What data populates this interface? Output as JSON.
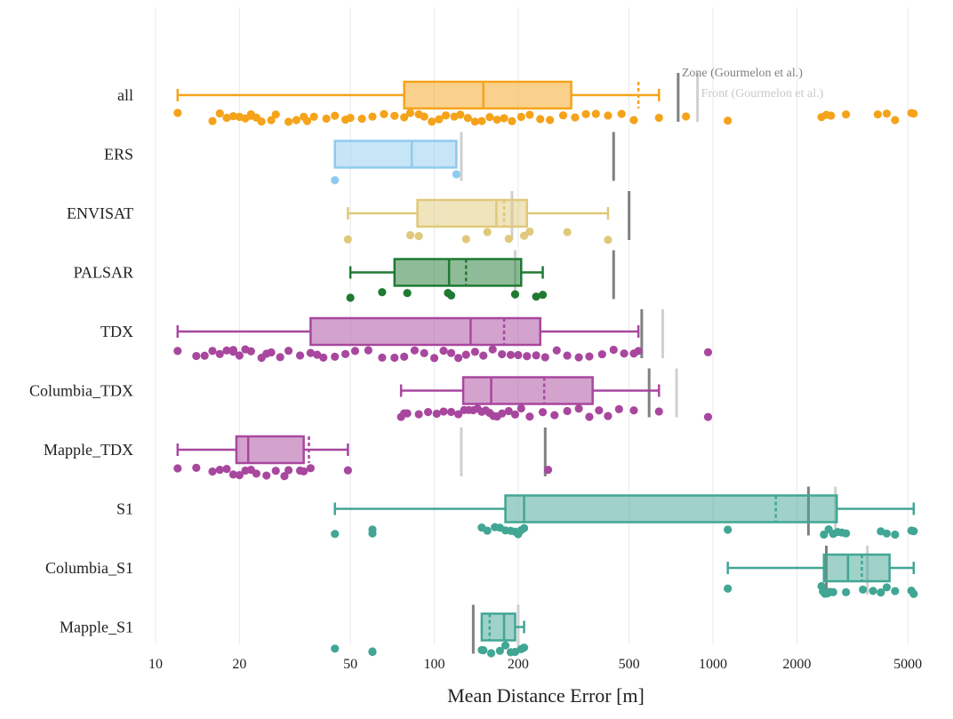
{
  "chart_data": {
    "type": "box",
    "xlabel": "Mean Distance Error [m]",
    "x_scale": "log",
    "xlim": [
      9.5,
      6000
    ],
    "x_ticks": [
      10,
      20,
      50,
      100,
      200,
      500,
      1000,
      2000,
      5000
    ],
    "x_tick_labels": [
      "10",
      "20",
      "50",
      "100",
      "200",
      "500",
      "1000",
      "2000",
      "5000"
    ],
    "grid": "vertical",
    "reference_lines": [
      {
        "label": "Zone (Gourmelon et al.)",
        "color": "#808080"
      },
      {
        "label": "Front (Gourmelon et al.)",
        "color": "#d0d0d0"
      }
    ],
    "categories": [
      "all",
      "ERS",
      "ENVISAT",
      "PALSAR",
      "TDX",
      "Columbia_TDX",
      "Mapple_TDX",
      "S1",
      "Columbia_S1",
      "Mapple_S1"
    ],
    "series": [
      {
        "name": "all",
        "color": "#f5a31a",
        "whisker_low": 12,
        "q1": 78,
        "median": 150,
        "mean": 540,
        "q3": 310,
        "whisker_high": 640,
        "zone": 750,
        "front": 880,
        "points": [
          12,
          16,
          17,
          18,
          19,
          20,
          21,
          22,
          22,
          23,
          24,
          26,
          27,
          30,
          32,
          34,
          35,
          37,
          41,
          44,
          48,
          50,
          55,
          60,
          66,
          72,
          78,
          82,
          88,
          92,
          98,
          104,
          110,
          118,
          124,
          132,
          140,
          148,
          158,
          168,
          178,
          190,
          205,
          220,
          240,
          260,
          290,
          320,
          350,
          380,
          420,
          470,
          520,
          640,
          800,
          1130,
          2450,
          2550,
          2650,
          3000,
          3900,
          4200,
          4500,
          5150,
          5250
        ]
      },
      {
        "name": "ERS",
        "color": "#8ecbee",
        "whisker_low": 44,
        "q1": 44,
        "median": 83,
        "mean": 120,
        "q3": 120,
        "whisker_high": 120,
        "zone": 440,
        "front": 125,
        "points": [
          44,
          120
        ]
      },
      {
        "name": "ENVISAT",
        "color": "#dfc97a",
        "whisker_low": 49,
        "q1": 87,
        "median": 167,
        "mean": 178,
        "q3": 215,
        "whisker_high": 420,
        "zone": 500,
        "front": 190,
        "points": [
          49,
          82,
          88,
          130,
          155,
          185,
          210,
          220,
          300,
          420
        ]
      },
      {
        "name": "PALSAR",
        "color": "#1f7a32",
        "whisker_low": 50,
        "q1": 72,
        "median": 113,
        "mean": 130,
        "q3": 205,
        "whisker_high": 245,
        "zone": 440,
        "front": 195,
        "points": [
          50,
          65,
          80,
          112,
          115,
          195,
          232,
          245
        ]
      },
      {
        "name": "TDX",
        "color": "#a8479e",
        "whisker_low": 12,
        "q1": 36,
        "median": 135,
        "mean": 178,
        "q3": 240,
        "whisker_high": 540,
        "zone": 555,
        "front": 660,
        "points": [
          12,
          14,
          15,
          16,
          17,
          18,
          19,
          19,
          20,
          21,
          22,
          24,
          25,
          26,
          28,
          30,
          33,
          36,
          38,
          40,
          44,
          48,
          52,
          58,
          65,
          72,
          78,
          85,
          92,
          100,
          108,
          115,
          122,
          130,
          140,
          150,
          162,
          175,
          188,
          200,
          215,
          232,
          250,
          275,
          300,
          330,
          360,
          400,
          440,
          480,
          520,
          540,
          960
        ]
      },
      {
        "name": "Columbia_TDX",
        "color": "#a8479e",
        "whisker_low": 76,
        "q1": 127,
        "median": 160,
        "mean": 248,
        "q3": 370,
        "whisker_high": 640,
        "zone": 590,
        "front": 740,
        "points": [
          76,
          78,
          80,
          88,
          95,
          102,
          108,
          115,
          122,
          128,
          133,
          138,
          143,
          148,
          153,
          158,
          163,
          168,
          175,
          185,
          195,
          205,
          220,
          245,
          270,
          300,
          330,
          360,
          390,
          420,
          460,
          520,
          640,
          960
        ]
      },
      {
        "name": "Mapple_TDX",
        "color": "#a8479e",
        "whisker_low": 12,
        "q1": 19.5,
        "median": 21.5,
        "mean": 35.5,
        "q3": 34,
        "whisker_high": 49,
        "zone": 250,
        "front": 125,
        "points": [
          12,
          14,
          16,
          17,
          18,
          19,
          20,
          21,
          22,
          23,
          25,
          27,
          29,
          30,
          33,
          34,
          36,
          49,
          256
        ]
      },
      {
        "name": "S1",
        "color": "#41a694",
        "whisker_low": 44,
        "q1": 180,
        "median": 210,
        "mean": 1680,
        "q3": 2780,
        "whisker_high": 5250,
        "zone": 2200,
        "front": 2750,
        "points": [
          44,
          60,
          60,
          148,
          155,
          165,
          172,
          180,
          188,
          195,
          200,
          205,
          210,
          1130,
          2500,
          2600,
          2700,
          2800,
          2900,
          3000,
          4000,
          4200,
          4500,
          5150,
          5250
        ]
      },
      {
        "name": "Columbia_S1",
        "color": "#41a694",
        "whisker_low": 1130,
        "q1": 2500,
        "median": 3050,
        "mean": 3420,
        "q3": 4300,
        "whisker_high": 5250,
        "zone": 2550,
        "front": 3580,
        "points": [
          1130,
          2450,
          2480,
          2520,
          2580,
          2620,
          2700,
          3000,
          3450,
          3750,
          4000,
          4200,
          4500,
          5150,
          5250
        ]
      },
      {
        "name": "Mapple_S1",
        "color": "#41a694",
        "whisker_low": 148,
        "q1": 148,
        "median": 178,
        "mean": 158,
        "q3": 195,
        "whisker_high": 210,
        "zone": 138,
        "front": 200,
        "points": [
          44,
          60,
          60,
          148,
          150,
          160,
          172,
          180,
          188,
          195,
          205,
          210
        ]
      }
    ]
  }
}
